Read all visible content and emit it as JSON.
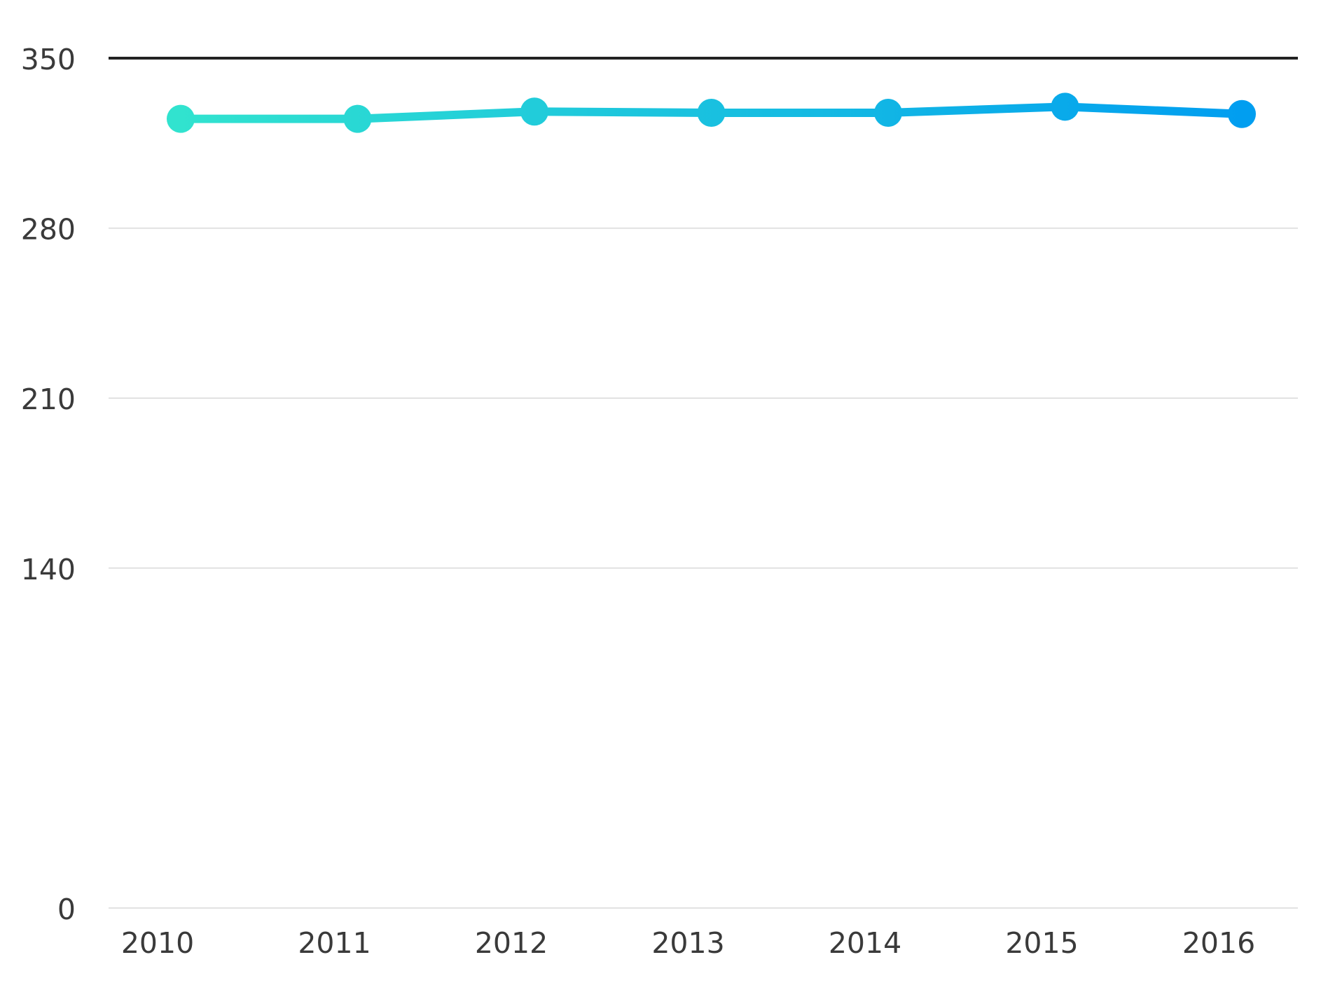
{
  "chart_data": {
    "type": "line",
    "title": "",
    "xlabel": "",
    "ylabel": "",
    "categories": [
      "2010",
      "2011",
      "2012",
      "2013",
      "2014",
      "2015",
      "2016"
    ],
    "series": [
      {
        "values": [
          325,
          325,
          328,
          327.5,
          327.5,
          330,
          327
        ]
      }
    ],
    "ylim": [
      0,
      350
    ],
    "yticks": [
      "0",
      "140",
      "210",
      "280",
      "350"
    ],
    "grid": true,
    "legend": "none",
    "colors": {
      "gradient_start": "#31e3cf",
      "gradient_end": "#019ef0",
      "grid": "#d9d9d9",
      "top_line": "#222222",
      "text": "#3a3a3a"
    }
  }
}
